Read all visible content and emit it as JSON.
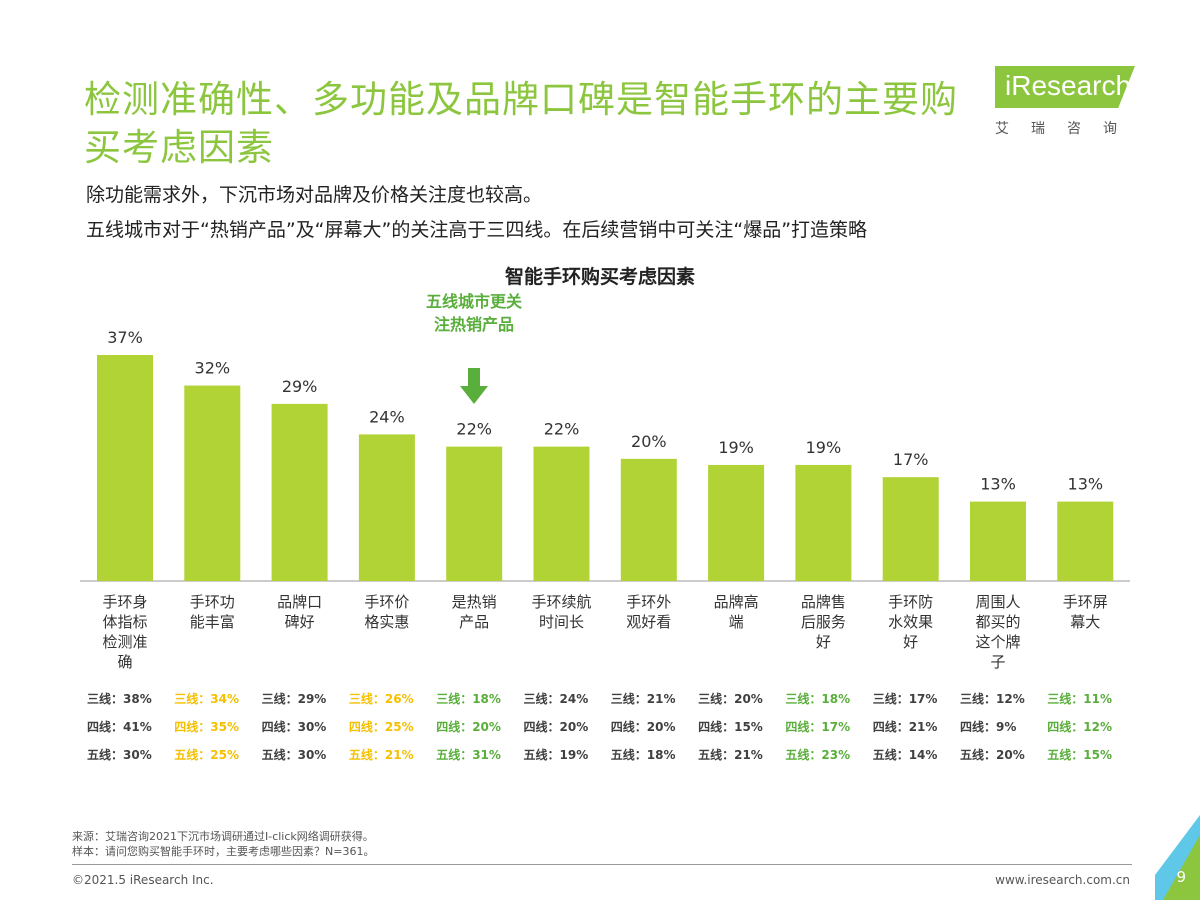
{
  "header": {
    "title": "检测准确性、多功能及品牌口碑是智能手环的主要购买考虑因素",
    "subtitle_1": "除功能需求外，下沉市场对品牌及价格关注度也较高。",
    "subtitle_2": "五线城市对于“热销产品”及“屏幕大”的关注高于三四线。在后续营销中可关注“爆品”打造策略",
    "logo_text": "iResearch",
    "logo_cn": "艾瑞咨询"
  },
  "annotation": "五线城市更关注热销产品",
  "colors": {
    "bar": "#b1d336",
    "accent": "#8cc63f",
    "text_dark": "#404040",
    "highlight_yellow": "#f5c000",
    "highlight_green": "#5aae3c"
  },
  "chart_data": {
    "type": "bar",
    "title": "智能手环购买考虑因素",
    "categories": [
      "手环身体指标检测准确",
      "手环功能丰富",
      "品牌口碑好",
      "手环价格实惠",
      "是热销产品",
      "手环续航时间长",
      "手环外观好看",
      "品牌高端",
      "品牌售后服务好",
      "手环防水效果好",
      "周围人都买的这个牌子",
      "手环屏幕大"
    ],
    "category_lines": [
      [
        "手环身",
        "体指标",
        "检测准",
        "确"
      ],
      [
        "手环功",
        "能丰富"
      ],
      [
        "品牌口",
        "碑好"
      ],
      [
        "手环价",
        "格实惠"
      ],
      [
        "是热销",
        "产品"
      ],
      [
        "手环续航",
        "时间长"
      ],
      [
        "手环外",
        "观好看"
      ],
      [
        "品牌高",
        "端"
      ],
      [
        "品牌售",
        "后服务",
        "好"
      ],
      [
        "手环防",
        "水效果",
        "好"
      ],
      [
        "周围人",
        "都买的",
        "这个牌",
        "子"
      ],
      [
        "手环屏",
        "幕大"
      ]
    ],
    "values": [
      37,
      32,
      29,
      24,
      22,
      22,
      20,
      19,
      19,
      17,
      13,
      13
    ],
    "data_labels": [
      "37%",
      "32%",
      "29%",
      "24%",
      "22%",
      "22%",
      "20%",
      "19%",
      "19%",
      "17%",
      "13%",
      "13%"
    ],
    "ylim": [
      0,
      40
    ],
    "grid": false,
    "breakdown": {
      "rows": [
        {
          "name": "三线",
          "values": [
            "三线：38%",
            "三线：34%",
            "三线：29%",
            "三线：26%",
            "三线：18%",
            "三线：24%",
            "三线：21%",
            "三线：20%",
            "三线：18%",
            "三线：17%",
            "三线：12%",
            "三线：11%"
          ]
        },
        {
          "name": "四线",
          "values": [
            "四线：41%",
            "四线：35%",
            "四线：30%",
            "四线：25%",
            "四线：20%",
            "四线：20%",
            "四线：20%",
            "四线：15%",
            "四线：17%",
            "四线：21%",
            "四线：9%",
            "四线：12%"
          ]
        },
        {
          "name": "五线",
          "values": [
            "五线：30%",
            "五线：25%",
            "五线：30%",
            "五线：21%",
            "五线：31%",
            "五线：19%",
            "五线：18%",
            "五线：21%",
            "五线：23%",
            "五线：14%",
            "五线：20%",
            "五线：15%"
          ]
        }
      ],
      "column_colors": [
        "dark",
        "yellow",
        "dark",
        "yellow",
        "green",
        "dark",
        "dark",
        "dark",
        "green",
        "dark",
        "dark",
        "green"
      ]
    }
  },
  "footer": {
    "source": "来源：艾瑞咨询2021下沉市场调研通过I-click网络调研获得。",
    "sample": "样本：请问您购买智能手环时，主要考虑哪些因素？N=361。",
    "copyright": "©2021.5 iResearch Inc.",
    "url": "www.iresearch.com.cn",
    "page": "9"
  }
}
